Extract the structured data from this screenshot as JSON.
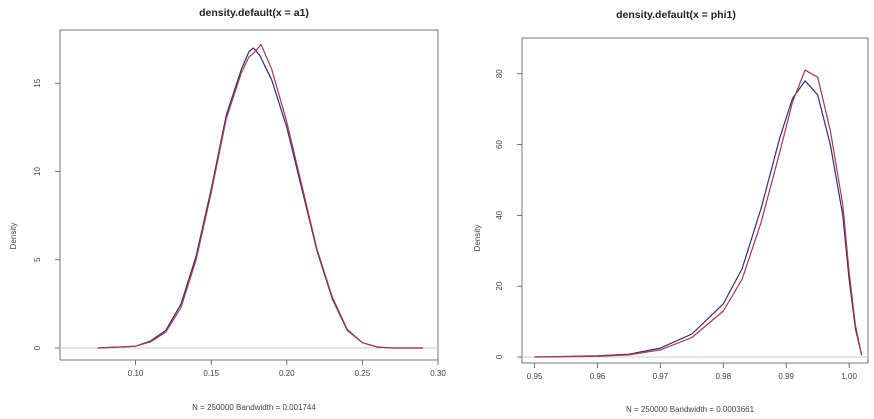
{
  "chart_data": [
    {
      "type": "line",
      "title": "density.default(x = a1)",
      "xlabel": "N = 250000   Bandwidth = 0.001744",
      "ylabel": "Density",
      "xlim": [
        0.05,
        0.3
      ],
      "ylim": [
        0,
        17
      ],
      "xticks": [
        0.1,
        0.15,
        0.2,
        0.25,
        0.3
      ],
      "xtick_labels": [
        "0.10",
        "0.15",
        "0.20",
        "0.25",
        "0.30"
      ],
      "yticks": [
        0,
        5,
        10,
        15
      ],
      "ytick_labels": [
        "0",
        "5",
        "10",
        "15"
      ],
      "grid": false,
      "zero_line": true,
      "series": [
        {
          "color": "#2b2f7a",
          "x": [
            0.075,
            0.1,
            0.11,
            0.12,
            0.13,
            0.14,
            0.15,
            0.16,
            0.17,
            0.175,
            0.178,
            0.182,
            0.19,
            0.2,
            0.21,
            0.22,
            0.23,
            0.24,
            0.25,
            0.26,
            0.27,
            0.29
          ],
          "y": [
            0.0,
            0.1,
            0.4,
            1.0,
            2.5,
            5.2,
            9.0,
            13.2,
            15.8,
            16.8,
            17.0,
            16.6,
            15.2,
            12.5,
            9.0,
            5.5,
            2.8,
            1.0,
            0.3,
            0.05,
            0.0,
            0.0
          ]
        },
        {
          "color": "#b0354a",
          "x": [
            0.075,
            0.1,
            0.11,
            0.12,
            0.13,
            0.14,
            0.15,
            0.16,
            0.17,
            0.175,
            0.178,
            0.183,
            0.19,
            0.2,
            0.21,
            0.22,
            0.23,
            0.24,
            0.25,
            0.26,
            0.27,
            0.29
          ],
          "y": [
            0.0,
            0.1,
            0.35,
            0.9,
            2.3,
            5.0,
            8.8,
            13.0,
            15.6,
            16.5,
            16.7,
            17.2,
            15.8,
            12.8,
            9.2,
            5.6,
            2.9,
            1.05,
            0.3,
            0.05,
            0.0,
            0.0
          ]
        }
      ]
    },
    {
      "type": "line",
      "title": "density.default(x = phi1)",
      "xlabel": "N = 250000   Bandwidth = 0.0003661",
      "ylabel": "Density",
      "xlim": [
        0.948,
        1.003
      ],
      "ylim": [
        0,
        85
      ],
      "xticks": [
        0.95,
        0.96,
        0.97,
        0.98,
        0.99,
        1.0
      ],
      "xtick_labels": [
        "0.95",
        "0.96",
        "0.97",
        "0.98",
        "0.99",
        "1.00"
      ],
      "yticks": [
        0,
        20,
        40,
        60,
        80
      ],
      "ytick_labels": [
        "0",
        "20",
        "40",
        "60",
        "80"
      ],
      "grid": false,
      "zero_line": true,
      "series": [
        {
          "color": "#2b2f7a",
          "x": [
            0.95,
            0.96,
            0.965,
            0.97,
            0.975,
            0.98,
            0.983,
            0.986,
            0.989,
            0.991,
            0.993,
            0.995,
            0.997,
            0.999,
            1.0,
            1.001,
            1.002
          ],
          "y": [
            0.0,
            0.3,
            0.8,
            2.5,
            6.5,
            15.0,
            25.0,
            42.0,
            62.0,
            73.0,
            78.0,
            74.0,
            60.0,
            40.0,
            22.0,
            8.0,
            0.5
          ]
        },
        {
          "color": "#b0354a",
          "x": [
            0.95,
            0.96,
            0.965,
            0.97,
            0.975,
            0.98,
            0.983,
            0.986,
            0.989,
            0.991,
            0.993,
            0.995,
            0.997,
            0.999,
            1.0,
            1.001,
            1.002
          ],
          "y": [
            0.0,
            0.2,
            0.6,
            2.0,
            5.5,
            13.0,
            22.0,
            38.0,
            58.0,
            72.0,
            81.0,
            79.0,
            64.0,
            43.0,
            24.0,
            9.0,
            0.5
          ]
        }
      ]
    }
  ]
}
